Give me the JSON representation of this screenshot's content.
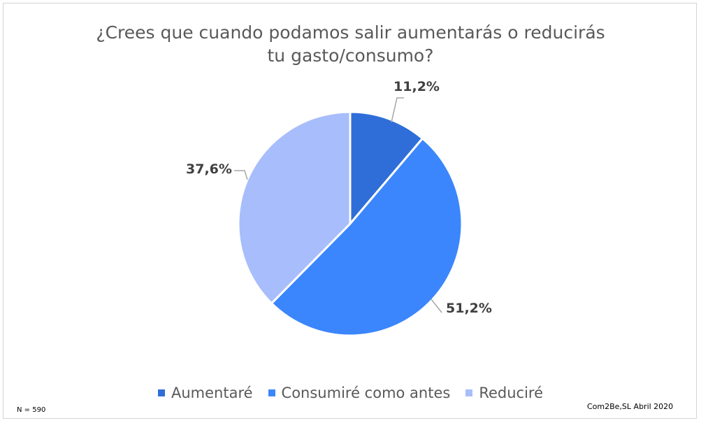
{
  "chart_data": {
    "type": "pie",
    "title_line1": "¿Crees que cuando podamos salir aumentarás o reducirás",
    "title_line2": "tu gasto/consumo?",
    "slices": [
      {
        "name": "Aumentaré",
        "value": 11.2,
        "label": "11,2%",
        "color": "#2f6ed8"
      },
      {
        "name": "Consumiré como antes",
        "value": 51.2,
        "label": "51,2%",
        "color": "#3b86fc"
      },
      {
        "name": "Reduciré",
        "value": 37.6,
        "label": "37,6%",
        "color": "#a8bdfb"
      }
    ],
    "legend_position": "bottom"
  },
  "notes": {
    "sample": "N = 590",
    "source": "Com2Be,SL Abril 2020"
  }
}
